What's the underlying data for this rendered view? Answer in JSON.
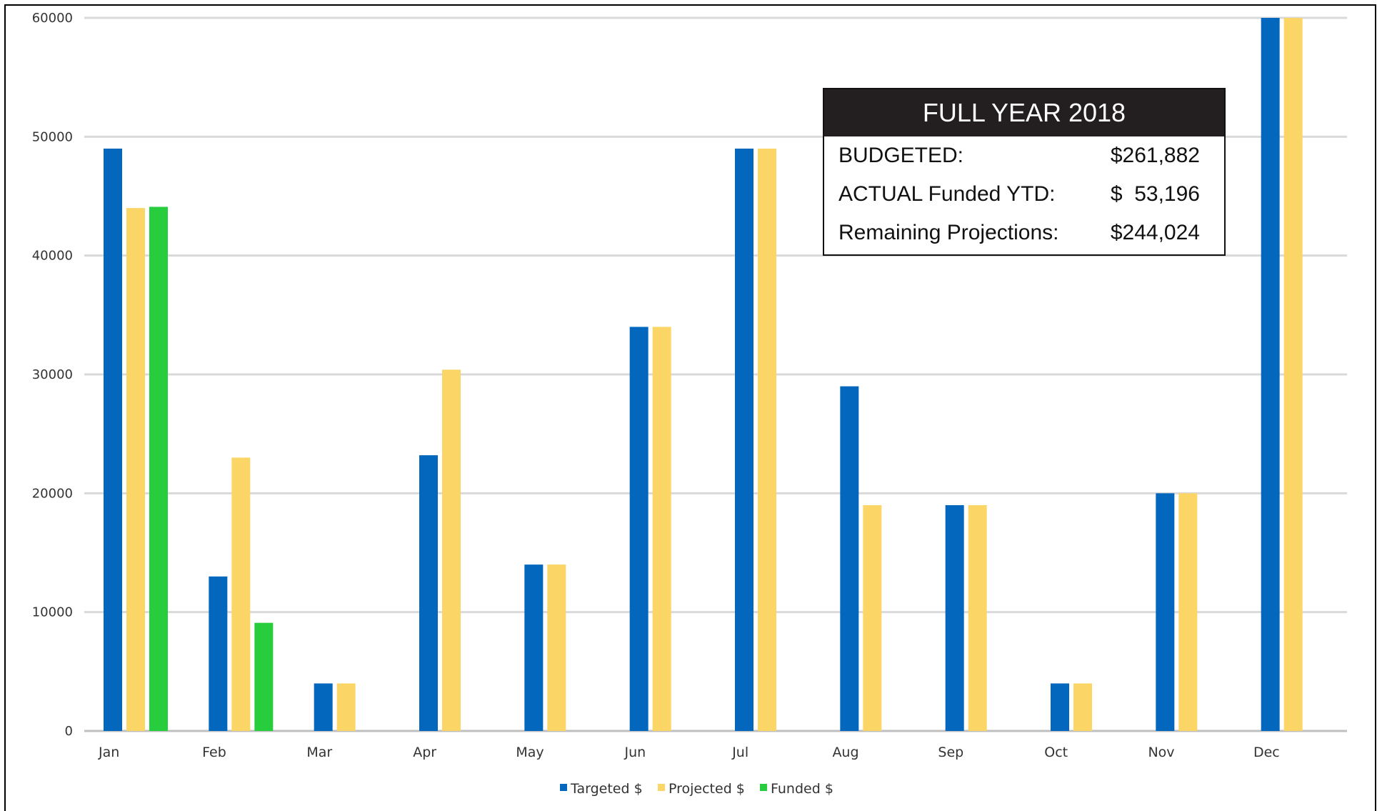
{
  "chart_data": {
    "type": "bar",
    "categories": [
      "Jan",
      "Feb",
      "Mar",
      "Apr",
      "May",
      "Jun",
      "Jul",
      "Aug",
      "Sep",
      "Oct",
      "Nov",
      "Dec"
    ],
    "series": [
      {
        "name": "Targeted $",
        "color": "#0368bd",
        "values": [
          49000,
          13000,
          4000,
          23200,
          14000,
          34000,
          49000,
          29000,
          19000,
          4000,
          20000,
          60000
        ]
      },
      {
        "name": "Projected $",
        "color": "#fbd565",
        "values": [
          44000,
          23000,
          4000,
          30400,
          14000,
          34000,
          49000,
          19000,
          19000,
          4000,
          20000,
          60000
        ]
      },
      {
        "name": "Funded $",
        "color": "#27cd3d",
        "values": [
          44100,
          9100,
          null,
          null,
          null,
          null,
          null,
          null,
          null,
          null,
          null,
          null
        ]
      }
    ],
    "y_ticks": [
      "0",
      "10000",
      "20000",
      "30000",
      "40000",
      "50000",
      "60000"
    ],
    "ylim": [
      0,
      60000
    ],
    "grid": true,
    "legend_position": "bottom-center",
    "title": "",
    "xlabel": "",
    "ylabel": ""
  },
  "summary": {
    "header": "FULL YEAR 2018",
    "rows": [
      {
        "label": "BUDGETED:",
        "value": "$261,882"
      },
      {
        "label": "ACTUAL Funded YTD:",
        "value": "$  53,196"
      },
      {
        "label": "Remaining Projections:",
        "value": "$244,024"
      }
    ]
  }
}
